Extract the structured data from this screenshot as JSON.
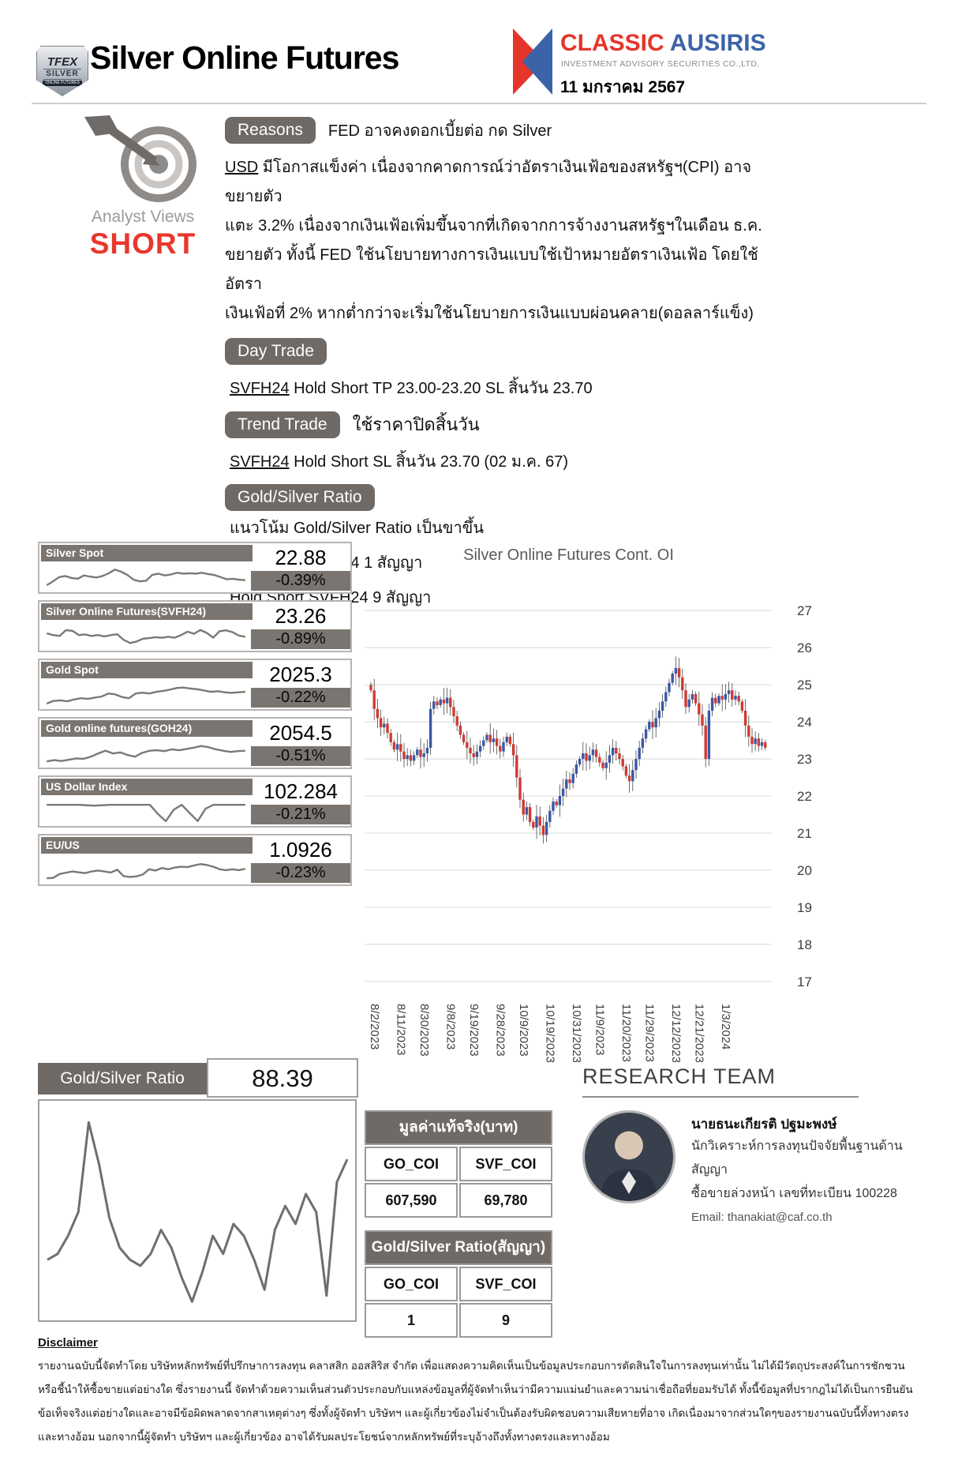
{
  "colors": {
    "badge_gray": "#6f6a66",
    "tile_gray": "#7a7570",
    "short_red": "#e8372c",
    "brand_red": "#e5352b",
    "brand_blue": "#3b63a8",
    "candle_up": "#3a57a7",
    "candle_down": "#d03a30",
    "spark_gray": "#7c7875"
  },
  "header": {
    "tfex_badge": {
      "line1": "TFEX",
      "line2": "SILVER",
      "line3": "ONLINE FUTURES"
    },
    "title": "Silver Online Futures",
    "brand": {
      "name_red": "CLASSIC",
      "name_blue": " AUSIRIS",
      "subtitle": "INVESTMENT ADVISORY SECURITIES CO.,LTD.",
      "date": "11 มกราคม 2567"
    }
  },
  "analyst": {
    "label": "Analyst Views",
    "view": "SHORT"
  },
  "reasons": {
    "badge": "Reasons",
    "headline": "FED อาจคงดอกเบี้ยต่อ กด Silver",
    "lead": "USD",
    "line1": " มีโอกาสแข็งค่า เนื่องจากคาดการณ์ว่าอัตราเงินเฟ้อของสหรัฐฯ(CPI) อาจขยายตัว",
    "line2": "แตะ 3.2% เนื่องจากเงินเฟ้อเพิ่มขึ้นจากที่เกิดจากการจ้างงานสหรัฐฯในเดือน ธ.ค.",
    "line3": "ขยายตัว ทั้งนี้ FED ใช้นโยบายทางการเงินแบบใช้เป้าหมายอัตราเงินเฟ้อ โดยใช้อัตรา",
    "line4": "เงินเฟ้อที่ 2% หากต่ำกว่าจะเริ่มใช้นโยบายการเงินแบบผ่อนคลาย(ดอลลาร์แข็ง)"
  },
  "day_trade": {
    "badge": "Day Trade",
    "symbol": "SVFH24",
    "text": " Hold Short  TP 23.00-23.20  SL สิ้นวัน 23.70"
  },
  "trend_trade": {
    "badge": "Trend Trade",
    "note": "ใช้ราคาปิดสิ้นวัน",
    "symbol": "SVFH24",
    "text": " Hold Short SL สิ้นวัน 23.70 (02 ม.ค. 67)"
  },
  "gold_silver_section": {
    "badge": "Gold/Silver Ratio",
    "lines": [
      "แนวโน้ม Gold/Silver Ratio เป็นขาขึ้น",
      "Hold Long GOH24 1 สัญญา",
      "Hold Short SVFH24 9 สัญญา"
    ]
  },
  "tiles": [
    {
      "label": "Silver Spot",
      "value": "22.88",
      "change": "-0.39%",
      "spark": [
        0.12,
        0.3,
        0.5,
        0.55,
        0.46,
        0.42,
        0.58,
        0.52,
        0.48,
        0.55,
        0.68,
        0.85,
        0.75,
        0.6,
        0.38,
        0.3,
        0.33,
        0.6,
        0.66,
        0.58,
        0.62,
        0.7,
        0.66,
        0.68,
        0.66,
        0.7,
        0.64,
        0.6,
        0.5,
        0.4,
        0.42,
        0.38,
        0.36
      ]
    },
    {
      "label": "Silver Online Futures(SVFH24)",
      "value": "23.26",
      "change": "-0.89%",
      "spark": [
        0.6,
        0.52,
        0.48,
        0.75,
        0.72,
        0.52,
        0.55,
        0.48,
        0.52,
        0.46,
        0.52,
        0.56,
        0.3,
        0.15,
        0.22,
        0.35,
        0.38,
        0.42,
        0.4,
        0.44,
        0.4,
        0.52,
        0.68,
        0.58,
        0.76,
        0.62,
        0.4,
        0.7,
        0.74,
        0.66,
        0.5,
        0.44
      ]
    },
    {
      "label": "Gold Spot",
      "value": "2025.3",
      "change": "-0.22%",
      "spark": [
        0.05,
        0.18,
        0.2,
        0.16,
        0.24,
        0.3,
        0.27,
        0.33,
        0.38,
        0.52,
        0.48,
        0.36,
        0.3,
        0.52,
        0.56,
        0.52,
        0.6,
        0.64,
        0.7,
        0.78,
        0.8,
        0.75,
        0.72,
        0.66,
        0.6,
        0.63,
        0.58,
        0.55,
        0.58,
        0.6
      ]
    },
    {
      "label": "Gold online futures(GOH24)",
      "value": "2054.5",
      "change": "-0.51%",
      "spark": [
        0.08,
        0.14,
        0.1,
        0.16,
        0.22,
        0.2,
        0.3,
        0.45,
        0.58,
        0.45,
        0.5,
        0.38,
        0.3,
        0.48,
        0.58,
        0.6,
        0.56,
        0.64,
        0.6,
        0.66,
        0.72,
        0.8,
        0.74,
        0.64,
        0.58,
        0.52,
        0.56,
        0.58
      ]
    },
    {
      "label": "US Dollar Index",
      "value": "102.284",
      "change": "-0.21%",
      "spark": [
        0.78,
        0.78,
        0.78,
        0.78,
        0.78,
        0.76,
        0.74,
        0.76,
        0.78,
        0.78,
        0.78,
        0.78,
        0.78,
        0.78,
        0.35,
        0.02,
        0.55,
        0.78,
        0.4,
        0.02,
        0.6,
        0.78,
        0.78,
        0.78,
        0.78,
        0.78
      ]
    },
    {
      "label": "EU/US",
      "value": "1.0926",
      "change": "-0.23%",
      "spark": [
        0.08,
        0.1,
        0.28,
        0.34,
        0.4,
        0.36,
        0.32,
        0.4,
        0.44,
        0.4,
        0.35,
        0.48,
        0.18,
        0.14,
        0.17,
        0.26,
        0.5,
        0.44,
        0.56,
        0.5,
        0.58,
        0.62,
        0.6,
        0.68,
        0.74,
        0.7,
        0.62,
        0.5,
        0.46,
        0.5,
        0.46,
        0.52
      ]
    }
  ],
  "chart_data": [
    {
      "type": "candlestick",
      "title": "Silver Online Futures Cont. OI",
      "ylim": [
        16.7,
        27.6
      ],
      "y_ticks": [
        27,
        26,
        25,
        24,
        23,
        22,
        21,
        20,
        19,
        18,
        17
      ],
      "x_ticks": [
        "8/2/2023",
        "8/11/2023",
        "8/30/2023",
        "9/8/2023",
        "9/19/2023",
        "9/28/2023",
        "10/9/2023",
        "10/19/2023",
        "10/31/2023",
        "11/9/2023",
        "11/20/2023",
        "11/29/2023",
        "12/12/2023",
        "12/21/2023",
        "1/3/2024"
      ],
      "open_first": 25.0,
      "up_color": "#3a57a7",
      "down_color": "#d03a30",
      "closes": [
        24.85,
        24.35,
        24.1,
        23.85,
        23.95,
        23.7,
        23.45,
        23.25,
        23.4,
        23.2,
        23.0,
        23.1,
        22.95,
        23.1,
        23.25,
        23.05,
        23.15,
        23.3,
        24.35,
        24.55,
        24.45,
        24.6,
        24.5,
        24.65,
        24.4,
        24.15,
        23.9,
        23.65,
        23.45,
        23.3,
        23.15,
        23.05,
        23.2,
        23.35,
        23.5,
        23.65,
        23.45,
        23.55,
        23.35,
        23.2,
        23.45,
        23.6,
        23.4,
        23.1,
        22.5,
        21.9,
        21.5,
        21.7,
        21.3,
        21.15,
        21.45,
        21.2,
        20.95,
        21.3,
        21.6,
        21.85,
        21.75,
        22.0,
        22.2,
        22.45,
        22.35,
        22.6,
        22.85,
        23.0,
        23.15,
        22.95,
        23.1,
        23.25,
        23.05,
        22.9,
        22.75,
        22.9,
        23.1,
        23.3,
        23.15,
        23.0,
        22.8,
        22.55,
        22.4,
        22.7,
        23.0,
        23.3,
        23.55,
        23.8,
        24.0,
        23.85,
        24.1,
        24.3,
        24.55,
        24.8,
        25.05,
        25.3,
        25.45,
        25.2,
        24.85,
        24.4,
        24.6,
        24.75,
        24.5,
        24.2,
        23.9,
        23.0,
        24.3,
        24.65,
        24.5,
        24.7,
        24.6,
        24.75,
        24.85,
        24.6,
        24.7,
        24.55,
        24.3,
        23.9,
        23.6,
        23.4,
        23.55,
        23.35,
        23.45,
        23.3
      ]
    },
    {
      "type": "line",
      "name": "gold-silver-ratio-trend",
      "current": "88.39",
      "values": [
        80,
        80.5,
        82,
        84,
        91.5,
        88,
        83.5,
        81,
        80,
        79.5,
        80.5,
        82.5,
        81,
        78.5,
        76.5,
        79,
        82,
        80.5,
        83,
        82,
        80,
        77.5,
        82.5,
        84.5,
        83,
        85.5,
        84,
        77,
        86.5,
        88.4
      ]
    }
  ],
  "ratio_section": {
    "header": "Gold/Silver Ratio",
    "value": "88.39"
  },
  "tables": [
    {
      "title": "มูลค่าแท้จริง(บาท)",
      "columns": [
        "GO_COI",
        "SVF_COI"
      ],
      "values": [
        "607,590",
        "69,780"
      ]
    },
    {
      "title": "Gold/Silver Ratio(สัญญา)",
      "columns": [
        "GO_COI",
        "SVF_COI"
      ],
      "values": [
        "1",
        "9"
      ]
    }
  ],
  "research": {
    "heading": "RESEARCH TEAM",
    "name": "นายธนะเกียรติ ปฐมะพงษ์",
    "role1": "นักวิเคราะห์การลงทุนปัจจัยพื้นฐานด้านสัญญา",
    "role2": "ซื้อขายล่วงหน้า เลขที่ทะเบียน 100228",
    "email": "Email: thanakiat@caf.co.th"
  },
  "disclaimer": {
    "title": "Disclaimer",
    "lines": [
      "รายงานฉบับนี้จัดทำโดย บริษัทหลักทรัพย์ที่ปรึกษาการลงทุน คลาสสิก ออสสิริส จำกัด เพื่อแสดงความคิดเห็นเป็นข้อมูลประกอบการตัดสินใจในการลงทุนเท่านั้น  ไม่ได้มีวัตถุประสงค์ในการชักชวน",
      "หรือชี้นำให้ซื้อขายแต่อย่างใด ซึ่งรายงานนี้ จัดทำด้วยความเห็นส่วนตัวประกอบกับแหล่งข้อมูลที่ผู้จัดทำเห็นว่ามีความแม่นยำและความน่าเชื่อถือที่ยอมรับได้  ทั้งนี้ข้อมูลที่ปรากฎไม่ได้เป็นการยืนยัน",
      "ข้อเท็จจริงแต่อย่างใดและอาจมีข้อผิดพลาดจากสาเหตุต่างๆ ซึ่งทั้งผู้จัดทำ บริษัทฯ และผู้เกี่ยวข้องไม่จำเป็นต้องรับผิดชอบความเสียหายที่อาจ  เกิดเนื่องมาจากส่วนใดๆของรายงานฉบับนี้ทั้งทางตรง",
      "และทางอ้อม นอกจากนี้ผู้จัดทำ บริษัทฯ และผู้เกี่ยวข้อง อาจได้รับผลประโยชน์จากหลักทรัพย์ที่ระบุอ้างถึงทั้งทางตรงและทางอ้อม"
    ]
  }
}
